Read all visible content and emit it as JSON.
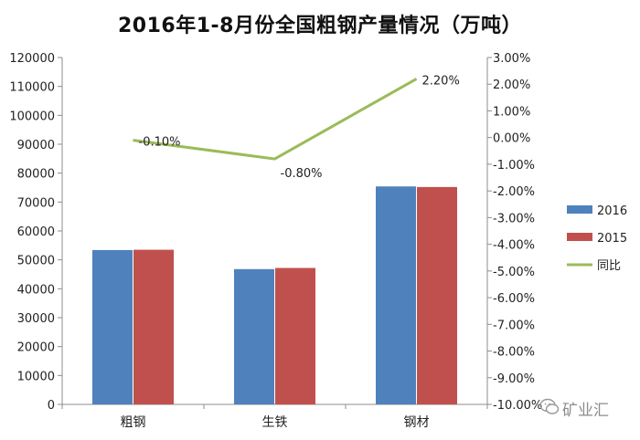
{
  "chart_data": {
    "type": "bar",
    "title": "2016年1-8月份全国粗钢产量情况（万吨）",
    "categories": [
      "粗钢",
      "生铁",
      "钢材"
    ],
    "series": [
      {
        "name": "2016",
        "kind": "bar",
        "axis": "left",
        "color": "#4F81BD",
        "values": [
          53400,
          46800,
          75400
        ]
      },
      {
        "name": "2015",
        "kind": "bar",
        "axis": "left",
        "color": "#C0504D",
        "values": [
          53500,
          47200,
          75200
        ]
      },
      {
        "name": "同比",
        "kind": "line",
        "axis": "right",
        "color": "#9BBB59",
        "values": [
          -0.1,
          -0.8,
          2.2
        ],
        "data_labels": [
          "-0.10%",
          "-0.80%",
          "2.20%"
        ]
      }
    ],
    "y_left": {
      "min": 0,
      "max": 120000,
      "step": 10000,
      "ticks": [
        "0",
        "10000",
        "20000",
        "30000",
        "40000",
        "50000",
        "60000",
        "70000",
        "80000",
        "90000",
        "100000",
        "110000",
        "120000"
      ]
    },
    "y_right": {
      "min": -10,
      "max": 3,
      "step": 1,
      "ticks": [
        "-10.00%",
        "-9.00%",
        "-8.00%",
        "-7.00%",
        "-6.00%",
        "-5.00%",
        "-4.00%",
        "-3.00%",
        "-2.00%",
        "-1.00%",
        "0.00%",
        "1.00%",
        "2.00%",
        "3.00%"
      ]
    },
    "grid": false,
    "legend_position": "right"
  },
  "watermark": {
    "text": "矿业汇",
    "icon": "wechat-icon"
  }
}
